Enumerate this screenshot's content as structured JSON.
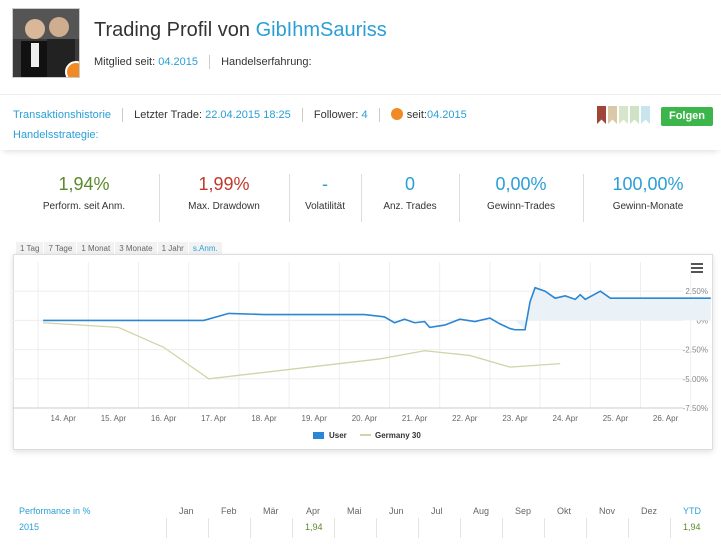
{
  "profile": {
    "title_prefix": "Trading Profil von",
    "username": "GibIhmSauriss",
    "member_since_label": "Mitglied seit:",
    "member_since_value": "04.2015",
    "experience_label": "Handelserfahrung:"
  },
  "infobar": {
    "history_link": "Transaktionshistorie",
    "last_trade_label": "Letzter Trade:",
    "last_trade_value": "22.04.2015 18:25",
    "follower_label": "Follower:",
    "follower_value": "4",
    "since_label": "seit:",
    "since_value": "04.2015",
    "strategy_link": "Handelsstrategie:",
    "follow_button": "Folgen",
    "flag_colors": [
      "#a0453a",
      "#d9c9a8",
      "#d7e6c8",
      "#cde3c4",
      "#c8e4ec"
    ]
  },
  "stats": [
    {
      "value": "1,94%",
      "label": "Perform. seit Anm.",
      "color": "#5a8a2a"
    },
    {
      "value": "1,99%",
      "label": "Max. Drawdown",
      "color": "#c0392b"
    },
    {
      "value": "-",
      "label": "Volatilität",
      "color": "#2a9fd6"
    },
    {
      "value": "0",
      "label": "Anz. Trades",
      "color": "#2a9fd6"
    },
    {
      "value": "0,00%",
      "label": "Gewinn-Trades",
      "color": "#2a9fd6"
    },
    {
      "value": "100,00%",
      "label": "Gewinn-Monate",
      "color": "#2a9fd6"
    }
  ],
  "ranges": [
    "1 Tag",
    "7 Tage",
    "1 Monat",
    "3 Monate",
    "1 Jahr",
    "s.Anm."
  ],
  "chart_data": {
    "type": "line",
    "x_ticks": [
      "14. Apr",
      "15. Apr",
      "16. Apr",
      "17. Apr",
      "18. Apr",
      "19. Apr",
      "20. Apr",
      "21. Apr",
      "22. Apr",
      "23. Apr",
      "24. Apr",
      "25. Apr",
      "26. Apr"
    ],
    "y_ticks": [
      "2.50%",
      "0%",
      "-2.50%",
      "-5.00%",
      "-7.50%"
    ],
    "ylim": [
      -7.5,
      5
    ],
    "grid": true,
    "legend_position": "bottom",
    "series": [
      {
        "name": "User",
        "color": "#2b86d4",
        "points": [
          [
            13.6,
            0
          ],
          [
            16.8,
            0
          ],
          [
            17.3,
            0.6
          ],
          [
            18,
            0.5
          ],
          [
            20,
            0.5
          ],
          [
            20.4,
            0.3
          ],
          [
            20.6,
            -0.2
          ],
          [
            20.8,
            0.1
          ],
          [
            21,
            -0.2
          ],
          [
            21.2,
            -0.1
          ],
          [
            21.3,
            -0.6
          ],
          [
            21.6,
            -0.4
          ],
          [
            21.9,
            0.1
          ],
          [
            22.2,
            -0.1
          ],
          [
            22.5,
            0.2
          ],
          [
            22.7,
            -0.3
          ],
          [
            22.9,
            -0.7
          ],
          [
            23,
            -0.8
          ],
          [
            23.2,
            -0.8
          ],
          [
            23.3,
            1.6
          ],
          [
            23.4,
            2.8
          ],
          [
            23.6,
            2.5
          ],
          [
            23.8,
            1.9
          ],
          [
            24,
            2.1
          ],
          [
            24.2,
            1.8
          ],
          [
            24.3,
            2.2
          ],
          [
            24.4,
            1.8
          ],
          [
            24.7,
            2.5
          ],
          [
            24.9,
            1.9
          ],
          [
            26.9,
            1.9
          ]
        ]
      },
      {
        "name": "Germany 30",
        "color": "#cfd5a9",
        "points": [
          [
            13.6,
            -0.2
          ],
          [
            15.1,
            -0.6
          ],
          [
            16,
            -2.3
          ],
          [
            16.9,
            -5
          ],
          [
            20.3,
            -3.3
          ],
          [
            21.2,
            -2.6
          ],
          [
            22.1,
            -3
          ],
          [
            22.9,
            -4
          ],
          [
            23.9,
            -3.7
          ]
        ]
      }
    ]
  },
  "performance": {
    "title": "Performance in %",
    "months": [
      "Jan",
      "Feb",
      "Mär",
      "Apr",
      "Mai",
      "Jun",
      "Jul",
      "Aug",
      "Sep",
      "Okt",
      "Nov",
      "Dez"
    ],
    "ytd_label": "YTD",
    "rows": [
      {
        "year": "2015",
        "values": [
          "",
          "",
          "",
          "1,94",
          "",
          "",
          "",
          "",
          "",
          "",
          "",
          ""
        ],
        "ytd": "1,94"
      }
    ]
  }
}
